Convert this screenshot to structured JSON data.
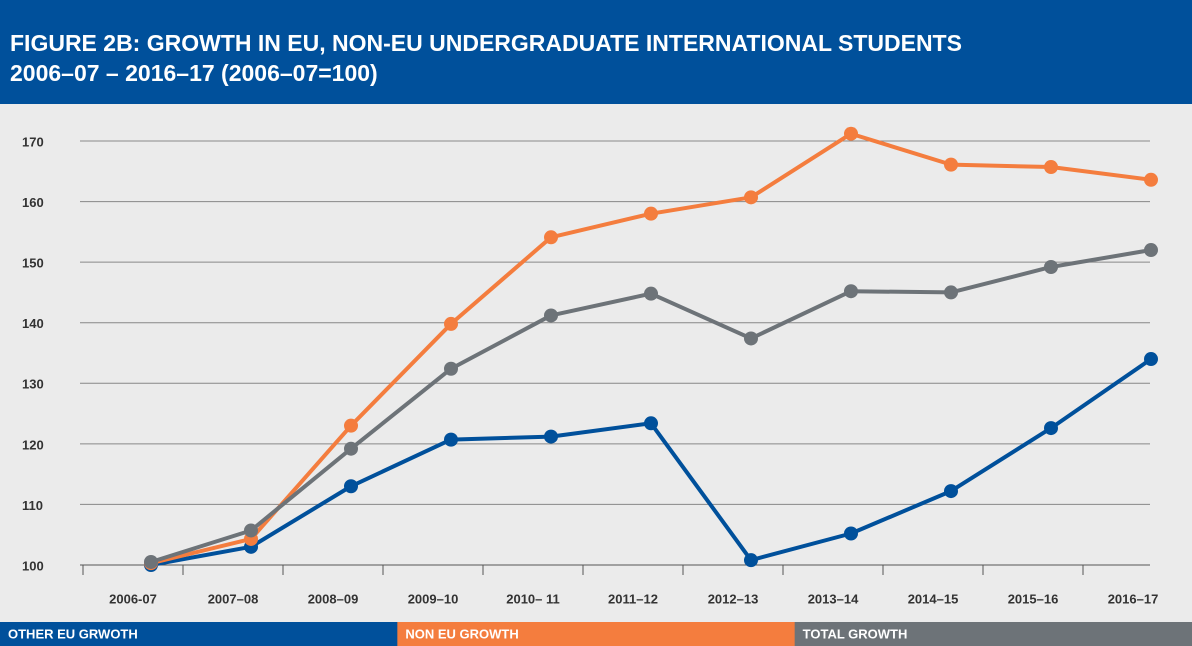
{
  "chart_data": {
    "type": "line",
    "title": [
      "FIGURE 2B: GROWTH IN EU, NON-EU UNDERGRADUATE INTERNATIONAL STUDENTS",
      "2006–07 – 2016–17 (2006–07=100)"
    ],
    "categories": [
      "2006-07",
      "2007–08",
      "2008–09",
      "2009–10",
      "2010– 11",
      "2011–12",
      "2012–13",
      "2013–14",
      "2014–15",
      "2015–16",
      "2016–17"
    ],
    "series": [
      {
        "name": "OTHER EU GRWOTH",
        "color": "#00509b",
        "values": [
          100,
          103,
          113,
          120.7,
          121.2,
          123.4,
          100.8,
          105.2,
          112.2,
          122.6,
          134
        ]
      },
      {
        "name": "NON EU GROWTH",
        "color": "#f47d3e",
        "values": [
          100.3,
          104.3,
          123,
          139.8,
          154.1,
          158,
          160.7,
          171.2,
          166.1,
          165.7,
          163.6
        ]
      },
      {
        "name": "TOTAL GROWTH",
        "color": "#6d7378",
        "values": [
          100.5,
          105.7,
          119.2,
          132.4,
          141.2,
          144.8,
          137.4,
          145.2,
          145,
          149.2,
          152
        ]
      }
    ],
    "ylim": [
      100,
      170
    ],
    "yticks": [
      100,
      110,
      120,
      130,
      140,
      150,
      160,
      170
    ],
    "grid": true
  }
}
